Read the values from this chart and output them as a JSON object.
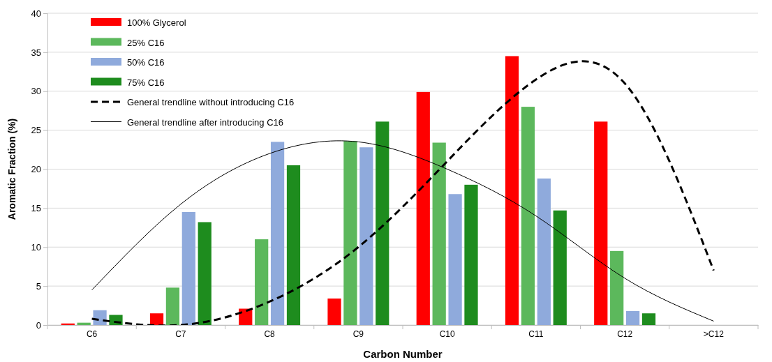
{
  "chart_data": {
    "type": "bar",
    "xlabel": "Carbon Number",
    "ylabel": "Aromatic Fraction (%)",
    "categories": [
      "C6",
      "C7",
      "C8",
      "C9",
      "C10",
      "C11",
      "C12",
      ">C12"
    ],
    "series": [
      {
        "name": "100% Glycerol",
        "color": "#ff0000",
        "values": [
          0.2,
          1.5,
          2.1,
          3.4,
          29.9,
          34.5,
          26.1,
          null
        ]
      },
      {
        "name": "25% C16",
        "color": "#5cb85c",
        "values": [
          0.3,
          4.8,
          11,
          23.6,
          23.4,
          28,
          9.5,
          null
        ]
      },
      {
        "name": "50% C16",
        "color": "#8faadc",
        "values": [
          1.9,
          14.5,
          23.5,
          22.8,
          16.8,
          18.8,
          1.8,
          null
        ]
      },
      {
        "name": "75% C16",
        "color": "#1e8c1e",
        "values": [
          1.3,
          13.2,
          20.5,
          26.1,
          18,
          14.7,
          1.5,
          null
        ]
      },
      {
        "name": "General trendline without introducing C16",
        "type": "line",
        "line_style": "dashed",
        "color": "#000000",
        "values": [
          0.8,
          0,
          3,
          10,
          21,
          31.5,
          31,
          7
        ]
      },
      {
        "name": "General trendline after introducing C16",
        "type": "line",
        "line_style": "solid",
        "color": "#000000",
        "values": [
          4.5,
          15.5,
          22,
          23.5,
          20,
          14,
          6,
          0.5
        ]
      }
    ],
    "ylim": [
      0,
      40
    ],
    "yticks": [
      0,
      5,
      10,
      15,
      20,
      25,
      30,
      35,
      40
    ],
    "grid": "y",
    "legend": "top left"
  }
}
